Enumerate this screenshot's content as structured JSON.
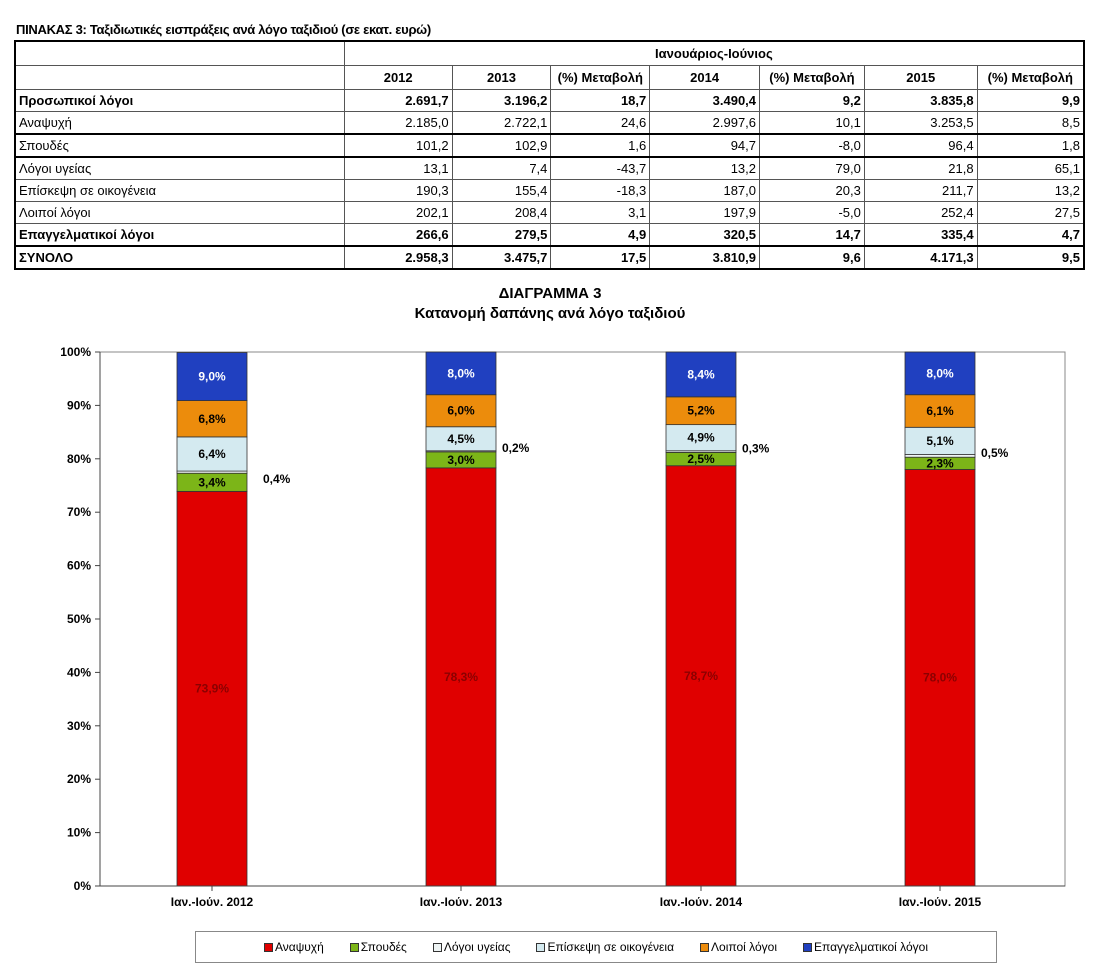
{
  "table": {
    "caption": "ΠΙΝΑΚΑΣ 3: Ταξιδιωτικές εισπράξεις ανά λόγο ταξιδιού (σε εκατ. ευρώ)",
    "period": "Ιανουάριος-Ιούνιος",
    "headers": [
      "2012",
      "2013",
      "(%) Μεταβολή",
      "2014",
      "(%) Μεταβολή",
      "2015",
      "(%) Μεταβολή"
    ],
    "rows": [
      {
        "label": "Προσωπικοί λόγοι",
        "bold": true,
        "values": [
          "2.691,7",
          "3.196,2",
          "18,7",
          "3.490,4",
          "9,2",
          "3.835,8",
          "9,9"
        ]
      },
      {
        "label": "Αναψυχή",
        "bold": false,
        "values": [
          "2.185,0",
          "2.722,1",
          "24,6",
          "2.997,6",
          "10,1",
          "3.253,5",
          "8,5"
        ]
      },
      {
        "label": "Σπουδές",
        "bold": false,
        "values": [
          "101,2",
          "102,9",
          "1,6",
          "94,7",
          "-8,0",
          "96,4",
          "1,8"
        ]
      },
      {
        "label": "Λόγοι υγείας",
        "bold": false,
        "values": [
          "13,1",
          "7,4",
          "-43,7",
          "13,2",
          "79,0",
          "21,8",
          "65,1"
        ]
      },
      {
        "label": "Επίσκεψη σε οικογένεια",
        "bold": false,
        "values": [
          "190,3",
          "155,4",
          "-18,3",
          "187,0",
          "20,3",
          "211,7",
          "13,2"
        ]
      },
      {
        "label": "Λοιποί λόγοι",
        "bold": false,
        "values": [
          "202,1",
          "208,4",
          "3,1",
          "197,9",
          "-5,0",
          "252,4",
          "27,5"
        ]
      },
      {
        "label": "Επαγγελματικοί λόγοι",
        "bold": true,
        "values": [
          "266,6",
          "279,5",
          "4,9",
          "320,5",
          "14,7",
          "335,4",
          "4,7"
        ]
      },
      {
        "label": "ΣΥΝΟΛΟ",
        "bold": true,
        "values": [
          "2.958,3",
          "3.475,7",
          "17,5",
          "3.810,9",
          "9,6",
          "4.171,3",
          "9,5"
        ]
      }
    ]
  },
  "chart_data": {
    "type": "bar",
    "stacked": true,
    "title": "ΔΙΑΓΡΑΜΜΑ 3",
    "subtitle": "Κατανομή δαπάνης ανά λόγο ταξιδιού",
    "categories": [
      "Ιαν.-Ιούν. 2012",
      "Ιαν.-Ιούν. 2013",
      "Ιαν.-Ιούν. 2014",
      "Ιαν.-Ιούν. 2015"
    ],
    "ylim": [
      0,
      100
    ],
    "yticks": [
      "0%",
      "10%",
      "20%",
      "30%",
      "40%",
      "50%",
      "60%",
      "70%",
      "80%",
      "90%",
      "100%"
    ],
    "legend_position": "bottom",
    "series": [
      {
        "name": "Αναψυχή",
        "color": "#e00000",
        "labelColor": "#8b0000",
        "values": [
          73.9,
          78.3,
          78.7,
          78.0
        ],
        "labels": [
          "73,9%",
          "78,3%",
          "78,7%",
          "78,0%"
        ]
      },
      {
        "name": "Σπουδές",
        "color": "#7cb518",
        "labelColor": "#000",
        "values": [
          3.4,
          3.0,
          2.5,
          2.3
        ],
        "labels": [
          "3,4%",
          "3,0%",
          "2,5%",
          "2,3%"
        ]
      },
      {
        "name": "Λόγοι υγείας",
        "color": "#eef4f4",
        "labelColor": "#000",
        "values": [
          0.4,
          0.2,
          0.3,
          0.5
        ],
        "labels": [
          "0,4%",
          "0,2%",
          "0,3%",
          "0,5%"
        ]
      },
      {
        "name": "Επίσκεψη σε οικογένεια",
        "color": "#d4eaf0",
        "labelColor": "#000",
        "values": [
          6.4,
          4.5,
          4.9,
          5.1
        ],
        "labels": [
          "6,4%",
          "4,5%",
          "4,9%",
          "5,1%"
        ]
      },
      {
        "name": "Λοιποί λόγοι",
        "color": "#ec8c0c",
        "labelColor": "#000",
        "values": [
          6.8,
          6.0,
          5.2,
          6.1
        ],
        "labels": [
          "6,8%",
          "6,0%",
          "5,2%",
          "6,1%"
        ]
      },
      {
        "name": "Επαγγελματικοί λόγοι",
        "color": "#2040c0",
        "labelColor": "#fff",
        "values": [
          9.0,
          8.0,
          8.4,
          8.0
        ],
        "labels": [
          "9,0%",
          "8,0%",
          "8,4%",
          "8,0%"
        ]
      }
    ]
  }
}
